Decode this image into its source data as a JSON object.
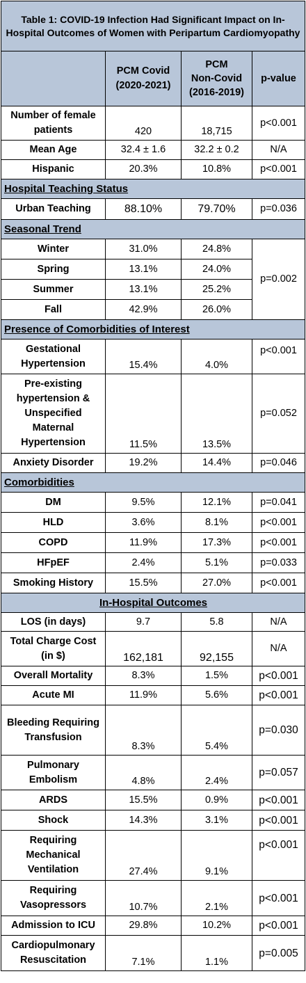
{
  "title": "Table 1: COVID-19 Infection Had Significant Impact on In-Hospital Outcomes of Women with Peripartum Cardiomyopathy",
  "columns": {
    "c1_line1": "PCM Covid",
    "c1_line2": "(2020-2021)",
    "c2_line1": "PCM",
    "c2_line2": "Non-Covid",
    "c2_line3": "(2016-2019)",
    "c3": "p-value"
  },
  "demographics": [
    {
      "label": "Number of female patients",
      "covid": "420",
      "noncovid": "18,715",
      "p": "p<0.001"
    },
    {
      "label": "Mean Age",
      "covid": "32.4 ± 1.6",
      "noncovid": "32.2 ± 0.2",
      "p": "N/A"
    },
    {
      "label": "Hispanic",
      "covid": "20.3%",
      "noncovid": "10.8%",
      "p": "p<0.001"
    }
  ],
  "teaching": {
    "section": "Hospital Teaching Status",
    "row": {
      "label": "Urban Teaching",
      "covid": "88.10%",
      "noncovid": "79.70%",
      "p": "p=0.036"
    }
  },
  "seasonal": {
    "section": "Seasonal Trend",
    "p": "p=0.002",
    "rows": [
      {
        "label": "Winter",
        "covid": "31.0%",
        "noncovid": "24.8%"
      },
      {
        "label": "Spring",
        "covid": "13.1%",
        "noncovid": "24.0%"
      },
      {
        "label": "Summer",
        "covid": "13.1%",
        "noncovid": "25.2%"
      },
      {
        "label": "Fall",
        "covid": "42.9%",
        "noncovid": "26.0%"
      }
    ]
  },
  "comorb_interest": {
    "section": "Presence of Comorbidities of Interest",
    "rows": [
      {
        "label": "Gestational Hypertension",
        "covid": "15.4%",
        "noncovid": "4.0%",
        "p": "p<0.001"
      },
      {
        "label": "Pre-existing hypertension & Unspecified Maternal Hypertension",
        "covid": "11.5%",
        "noncovid": "13.5%",
        "p": "p=0.052"
      },
      {
        "label": "Anxiety Disorder",
        "covid": "19.2%",
        "noncovid": "14.4%",
        "p": "p=0.046"
      }
    ]
  },
  "comorbidities": {
    "section": "Comorbidities",
    "rows": [
      {
        "label": "DM",
        "covid": "9.5%",
        "noncovid": "12.1%",
        "p": "p=0.041"
      },
      {
        "label": "HLD",
        "covid": "3.6%",
        "noncovid": "8.1%",
        "p": "p<0.001"
      },
      {
        "label": "COPD",
        "covid": "11.9%",
        "noncovid": "17.3%",
        "p": "p<0.001"
      },
      {
        "label": "HFpEF",
        "covid": "2.4%",
        "noncovid": "5.1%",
        "p": "p=0.033"
      },
      {
        "label": "Smoking History",
        "covid": "15.5%",
        "noncovid": "27.0%",
        "p": "p<0.001"
      }
    ]
  },
  "outcomes": {
    "section": "In-Hospital Outcomes",
    "rows": [
      {
        "label": "LOS (in days)",
        "covid": "9.7",
        "noncovid": "5.8",
        "p": "N/A"
      },
      {
        "label": "Total Charge Cost (in $)",
        "covid": "162,181",
        "noncovid": "92,155",
        "p": "N/A"
      },
      {
        "label": "Overall Mortality",
        "covid": "8.3%",
        "noncovid": "1.5%",
        "p": "p<0.001"
      },
      {
        "label": "Acute MI",
        "covid": "11.9%",
        "noncovid": "5.6%",
        "p": "p<0.001"
      },
      {
        "label": "Bleeding Requiring Transfusion",
        "covid": "8.3%",
        "noncovid": "5.4%",
        "p": "p=0.030"
      },
      {
        "label": "Pulmonary Embolism",
        "covid": "4.8%",
        "noncovid": "2.4%",
        "p": "p=0.057"
      },
      {
        "label": "ARDS",
        "covid": "15.5%",
        "noncovid": "0.9%",
        "p": "p<0.001"
      },
      {
        "label": "Shock",
        "covid": "14.3%",
        "noncovid": "3.1%",
        "p": "p<0.001"
      },
      {
        "label": "Requiring Mechanical Ventilation",
        "covid": "27.4%",
        "noncovid": "9.1%",
        "p": "p<0.001"
      },
      {
        "label": "Requiring Vasopressors",
        "covid": "10.7%",
        "noncovid": "2.1%",
        "p": "p<0.001"
      },
      {
        "label": "Admission to ICU",
        "covid": "29.8%",
        "noncovid": "10.2%",
        "p": "p<0.001"
      },
      {
        "label": "Cardiopulmonary Resuscitation",
        "covid": "7.1%",
        "noncovid": "1.1%",
        "p": "p=0.005"
      }
    ]
  }
}
